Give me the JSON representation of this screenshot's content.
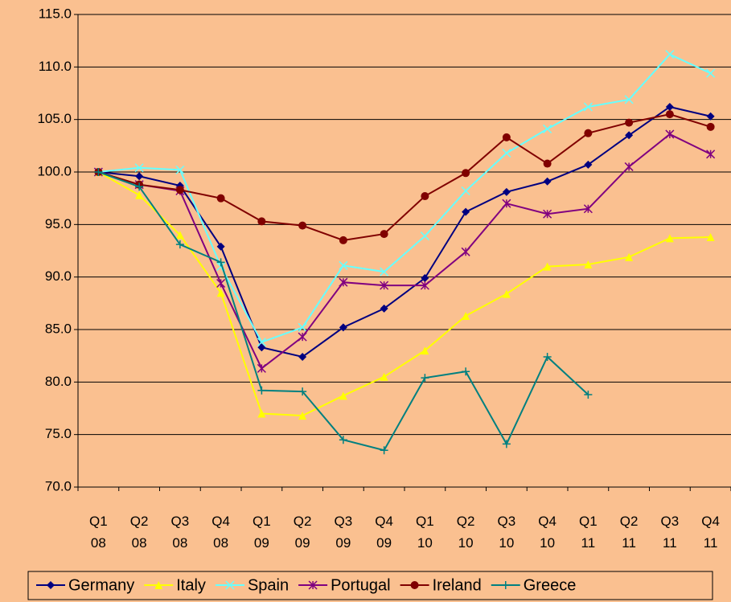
{
  "chart_data": {
    "type": "line",
    "categories": [
      "Q1 08",
      "Q2 08",
      "Q3 08",
      "Q4 08",
      "Q1 09",
      "Q2 09",
      "Q3 09",
      "Q4 09",
      "Q1 10",
      "Q2 10",
      "Q3 10",
      "Q4 10",
      "Q1 11",
      "Q2 11",
      "Q3 11",
      "Q4 11"
    ],
    "series": [
      {
        "name": "Germany",
        "color": "#000080",
        "marker": "diamond",
        "values": [
          100,
          99.6,
          98.7,
          92.9,
          83.3,
          82.4,
          85.2,
          87.0,
          89.9,
          96.2,
          98.1,
          99.1,
          100.7,
          103.5,
          106.2,
          105.3
        ]
      },
      {
        "name": "Italy",
        "color": "#ffff00",
        "marker": "triangle",
        "values": [
          100,
          97.8,
          94.0,
          88.5,
          77.0,
          76.8,
          78.7,
          80.5,
          83.0,
          86.3,
          88.4,
          91.0,
          91.2,
          91.9,
          93.7,
          93.8
        ]
      },
      {
        "name": "Spain",
        "color": "#66ffff",
        "marker": "x",
        "values": [
          100,
          100.4,
          100.2,
          91.0,
          83.8,
          85.2,
          91.1,
          90.5,
          93.9,
          98.2,
          101.8,
          104.1,
          106.2,
          106.9,
          111.2,
          109.4
        ]
      },
      {
        "name": "Portugal",
        "color": "#800080",
        "marker": "star",
        "values": [
          100,
          98.8,
          98.2,
          89.4,
          81.3,
          84.3,
          89.5,
          89.2,
          89.2,
          92.4,
          97.0,
          96.0,
          96.5,
          100.5,
          103.6,
          101.7
        ]
      },
      {
        "name": "Ireland",
        "color": "#800000",
        "marker": "circle",
        "values": [
          100,
          98.8,
          98.3,
          97.5,
          95.3,
          94.9,
          93.5,
          94.1,
          97.7,
          99.9,
          103.3,
          100.8,
          103.7,
          104.7,
          105.5,
          104.3
        ]
      },
      {
        "name": "Greece",
        "color": "#008080",
        "marker": "plus",
        "values": [
          100,
          98.6,
          93.1,
          91.4,
          79.2,
          79.1,
          74.5,
          73.5,
          80.4,
          81.0,
          74.1,
          82.4,
          78.8,
          null,
          null,
          null
        ]
      }
    ],
    "ylim": [
      70,
      115
    ],
    "yticks": [
      {
        "value": 70,
        "label": "70.0"
      },
      {
        "value": 75,
        "label": "75.0"
      },
      {
        "value": 80,
        "label": "80.0"
      },
      {
        "value": 85,
        "label": "85.0"
      },
      {
        "value": 90,
        "label": "90.0"
      },
      {
        "value": 95,
        "label": "95.0"
      },
      {
        "value": 100,
        "label": "100.0"
      },
      {
        "value": 105,
        "label": "105.0"
      },
      {
        "value": 110,
        "label": "110.0"
      },
      {
        "value": 115,
        "label": "115.0"
      }
    ],
    "grid": true,
    "legend": "bottom"
  }
}
